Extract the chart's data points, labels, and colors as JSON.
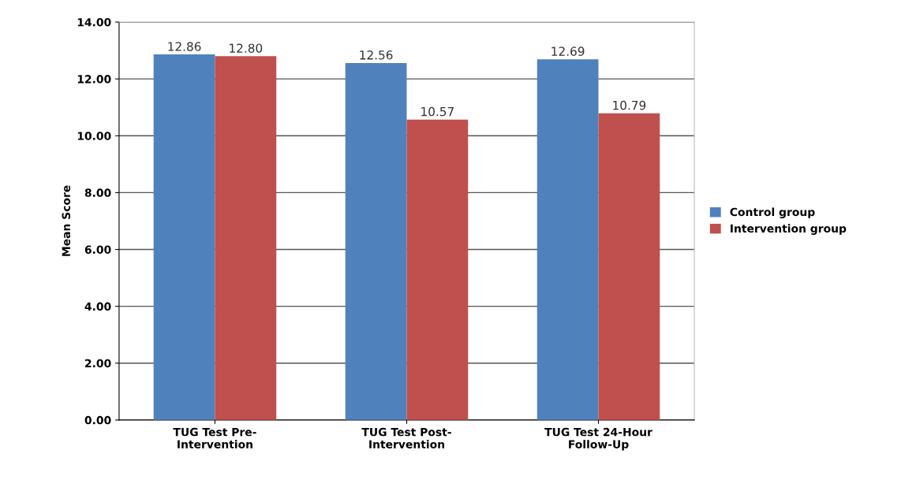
{
  "chart_data": {
    "type": "bar",
    "ylabel": "Mean Score",
    "categories": [
      "TUG Test Pre-\nIntervention",
      "TUG Test Post-\nIntervention",
      "TUG Test 24-Hour\nFollow-Up"
    ],
    "series": [
      {
        "name": "Control group",
        "color": "#4f81bd",
        "values": [
          12.86,
          12.56,
          12.69
        ],
        "value_labels": [
          "12.86",
          "12.56",
          "12.69"
        ]
      },
      {
        "name": "Intervention group",
        "color": "#c0504d",
        "values": [
          12.8,
          10.57,
          10.79
        ],
        "value_labels": [
          "12.80",
          "10.57",
          "10.79"
        ]
      }
    ],
    "ylim": [
      0,
      14
    ],
    "yticks": [
      {
        "value": 0,
        "label": "0.00"
      },
      {
        "value": 2,
        "label": "2.00"
      },
      {
        "value": 4,
        "label": "4.00"
      },
      {
        "value": 6,
        "label": "6.00"
      },
      {
        "value": 8,
        "label": "8.00"
      },
      {
        "value": 10,
        "label": "10.00"
      },
      {
        "value": 12,
        "label": "12.00"
      },
      {
        "value": 14,
        "label": "14.00"
      }
    ],
    "grid": "y",
    "legend": "right"
  }
}
